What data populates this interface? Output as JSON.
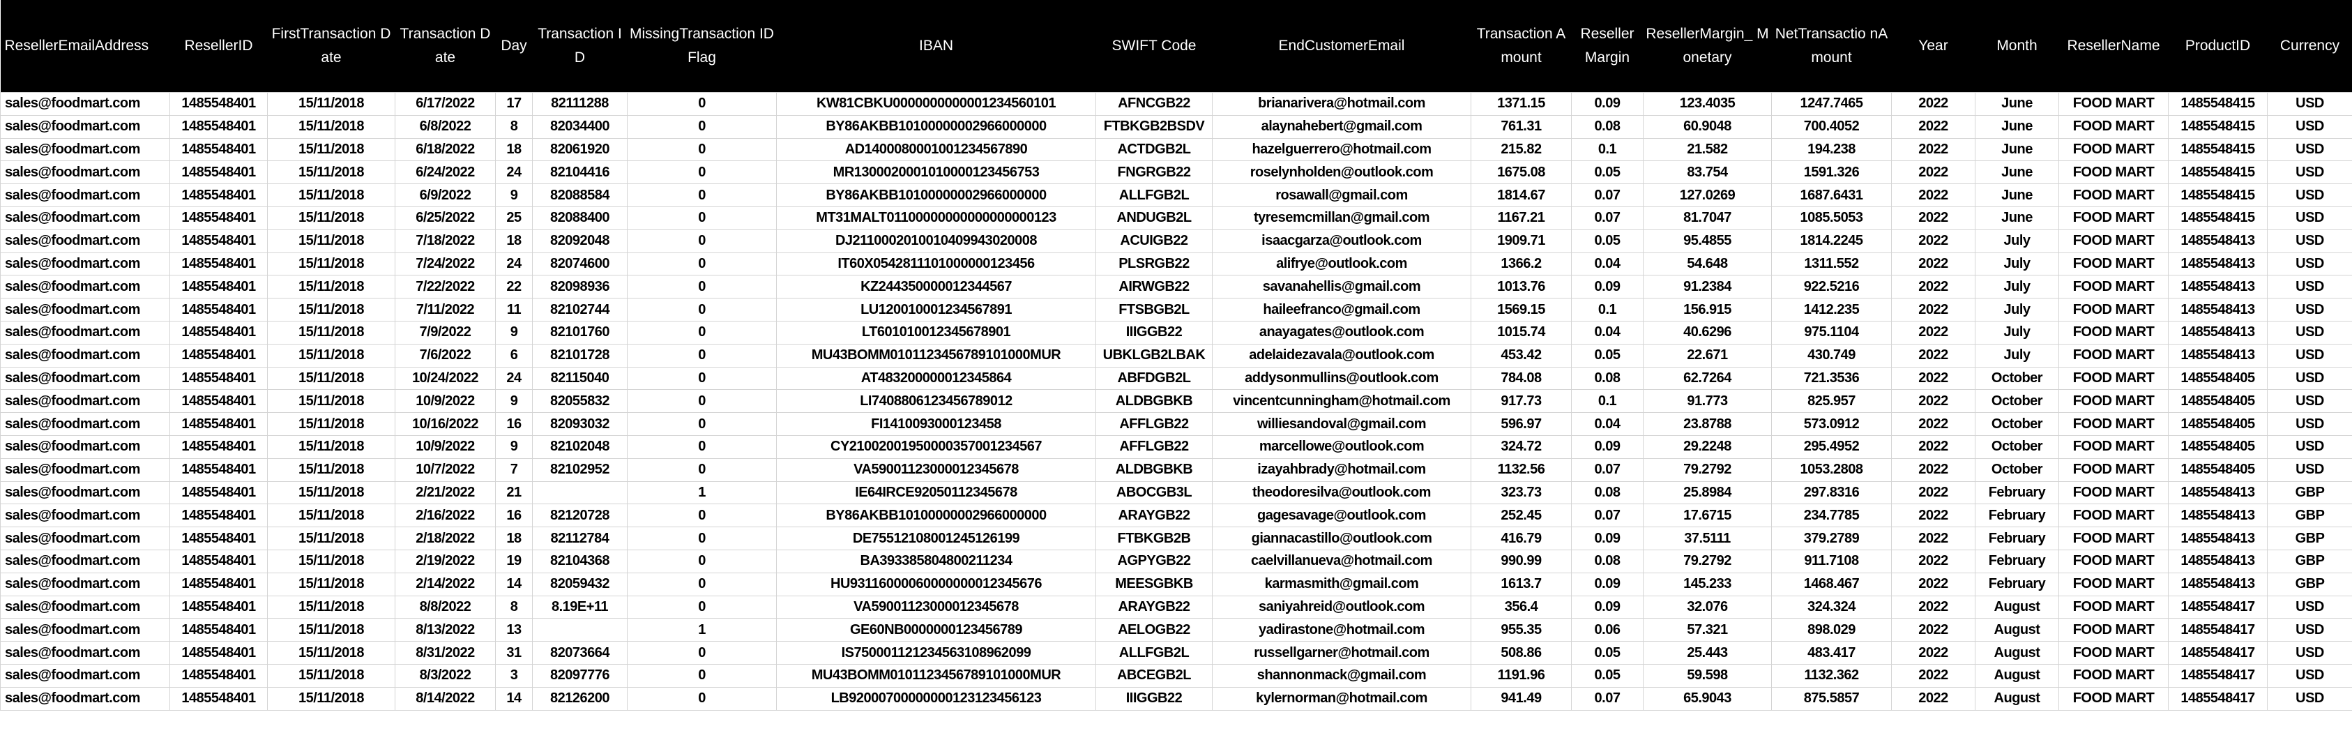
{
  "sheet": {
    "columns": [
      "ResellerEmailAddress",
      "ResellerID",
      "FirstTransaction Date",
      "Transaction Date",
      "Day",
      "Transaction ID",
      "MissingTransaction IDFlag",
      "IBAN",
      "SWIFT Code",
      "EndCustomerEmail",
      "Transaction Amount",
      "Reseller Margin",
      "ResellerMargin_ Monetary",
      "NetTransactio nAmount",
      "Year",
      "Month",
      "ResellerName",
      "ProductID",
      "Currency"
    ],
    "rows": [
      [
        "sales@foodmart.com",
        "1485548401",
        "15/11/2018",
        "6/17/2022",
        "17",
        "82111288",
        "0",
        "KW81CBKU0000000000001234560101",
        "AFNCGB22",
        "brianarivera@hotmail.com",
        "1371.15",
        "0.09",
        "123.4035",
        "1247.7465",
        "2022",
        "June",
        "FOOD MART",
        "1485548415",
        "USD"
      ],
      [
        "sales@foodmart.com",
        "1485548401",
        "15/11/2018",
        "6/8/2022",
        "8",
        "82034400",
        "0",
        "BY86AKBB10100000002966000000",
        "FTBKGB2BSDV",
        "alaynahebert@gmail.com",
        "761.31",
        "0.08",
        "60.9048",
        "700.4052",
        "2022",
        "June",
        "FOOD MART",
        "1485548415",
        "USD"
      ],
      [
        "sales@foodmart.com",
        "1485548401",
        "15/11/2018",
        "6/18/2022",
        "18",
        "82061920",
        "0",
        "AD1400080001001234567890",
        "ACTDGB2L",
        "hazelguerrero@hotmail.com",
        "215.82",
        "0.1",
        "21.582",
        "194.238",
        "2022",
        "June",
        "FOOD MART",
        "1485548415",
        "USD"
      ],
      [
        "sales@foodmart.com",
        "1485548401",
        "15/11/2018",
        "6/24/2022",
        "24",
        "82104416",
        "0",
        "MR1300020001010000123456753",
        "FNGRGB22",
        "roselynholden@outlook.com",
        "1675.08",
        "0.05",
        "83.754",
        "1591.326",
        "2022",
        "June",
        "FOOD MART",
        "1485548415",
        "USD"
      ],
      [
        "sales@foodmart.com",
        "1485548401",
        "15/11/2018",
        "6/9/2022",
        "9",
        "82088584",
        "0",
        "BY86AKBB10100000002966000000",
        "ALLFGB2L",
        "rosawall@gmail.com",
        "1814.67",
        "0.07",
        "127.0269",
        "1687.6431",
        "2022",
        "June",
        "FOOD MART",
        "1485548415",
        "USD"
      ],
      [
        "sales@foodmart.com",
        "1485548401",
        "15/11/2018",
        "6/25/2022",
        "25",
        "82088400",
        "0",
        "MT31MALT01100000000000000000123",
        "ANDUGB2L",
        "tyresemcmillan@gmail.com",
        "1167.21",
        "0.07",
        "81.7047",
        "1085.5053",
        "2022",
        "June",
        "FOOD MART",
        "1485548415",
        "USD"
      ],
      [
        "sales@foodmart.com",
        "1485548401",
        "15/11/2018",
        "7/18/2022",
        "18",
        "82092048",
        "0",
        "DJ2110002010010409943020008",
        "ACUIGB22",
        "isaacgarza@outlook.com",
        "1909.71",
        "0.05",
        "95.4855",
        "1814.2245",
        "2022",
        "July",
        "FOOD MART",
        "1485548413",
        "USD"
      ],
      [
        "sales@foodmart.com",
        "1485548401",
        "15/11/2018",
        "7/24/2022",
        "24",
        "82074600",
        "0",
        "IT60X0542811101000000123456",
        "PLSRGB22",
        "alifrye@outlook.com",
        "1366.2",
        "0.04",
        "54.648",
        "1311.552",
        "2022",
        "July",
        "FOOD MART",
        "1485548413",
        "USD"
      ],
      [
        "sales@foodmart.com",
        "1485548401",
        "15/11/2018",
        "7/22/2022",
        "22",
        "82098936",
        "0",
        "KZ244350000012344567",
        "AIRWGB22",
        "savanahellis@gmail.com",
        "1013.76",
        "0.09",
        "91.2384",
        "922.5216",
        "2022",
        "July",
        "FOOD MART",
        "1485548413",
        "USD"
      ],
      [
        "sales@foodmart.com",
        "1485548401",
        "15/11/2018",
        "7/11/2022",
        "11",
        "82102744",
        "0",
        "LU120010001234567891",
        "FTSBGB2L",
        "haileefranco@gmail.com",
        "1569.15",
        "0.1",
        "156.915",
        "1412.235",
        "2022",
        "July",
        "FOOD MART",
        "1485548413",
        "USD"
      ],
      [
        "sales@foodmart.com",
        "1485548401",
        "15/11/2018",
        "7/9/2022",
        "9",
        "82101760",
        "0",
        "LT601010012345678901",
        "IIIGGB22",
        "anayagates@outlook.com",
        "1015.74",
        "0.04",
        "40.6296",
        "975.1104",
        "2022",
        "July",
        "FOOD MART",
        "1485548413",
        "USD"
      ],
      [
        "sales@foodmart.com",
        "1485548401",
        "15/11/2018",
        "7/6/2022",
        "6",
        "82101728",
        "0",
        "MU43BOMM0101123456789101000MUR",
        "UBKLGB2LBAK",
        "adelaidezavala@outlook.com",
        "453.42",
        "0.05",
        "22.671",
        "430.749",
        "2022",
        "July",
        "FOOD MART",
        "1485548413",
        "USD"
      ],
      [
        "sales@foodmart.com",
        "1485548401",
        "15/11/2018",
        "10/24/2022",
        "24",
        "82115040",
        "0",
        "AT483200000012345864",
        "ABFDGB2L",
        "addysonmullins@outlook.com",
        "784.08",
        "0.08",
        "62.7264",
        "721.3536",
        "2022",
        "October",
        "FOOD MART",
        "1485548405",
        "USD"
      ],
      [
        "sales@foodmart.com",
        "1485548401",
        "15/11/2018",
        "10/9/2022",
        "9",
        "82055832",
        "0",
        "LI7408806123456789012",
        "ALDBGBKB",
        "vincentcunningham@hotmail.com",
        "917.73",
        "0.1",
        "91.773",
        "825.957",
        "2022",
        "October",
        "FOOD MART",
        "1485548405",
        "USD"
      ],
      [
        "sales@foodmart.com",
        "1485548401",
        "15/11/2018",
        "10/16/2022",
        "16",
        "82093032",
        "0",
        "FI1410093000123458",
        "AFFLGB22",
        "williesandoval@gmail.com",
        "596.97",
        "0.04",
        "23.8788",
        "573.0912",
        "2022",
        "October",
        "FOOD MART",
        "1485548405",
        "USD"
      ],
      [
        "sales@foodmart.com",
        "1485548401",
        "15/11/2018",
        "10/9/2022",
        "9",
        "82102048",
        "0",
        "CY21002001950000357001234567",
        "AFFLGB22",
        "marcellowe@outlook.com",
        "324.72",
        "0.09",
        "29.2248",
        "295.4952",
        "2022",
        "October",
        "FOOD MART",
        "1485548405",
        "USD"
      ],
      [
        "sales@foodmart.com",
        "1485548401",
        "15/11/2018",
        "10/7/2022",
        "7",
        "82102952",
        "0",
        "VA59001123000012345678",
        "ALDBGBKB",
        "izayahbrady@hotmail.com",
        "1132.56",
        "0.07",
        "79.2792",
        "1053.2808",
        "2022",
        "October",
        "FOOD MART",
        "1485548405",
        "USD"
      ],
      [
        "sales@foodmart.com",
        "1485548401",
        "15/11/2018",
        "2/21/2022",
        "21",
        "",
        "1",
        "IE64IRCE92050112345678",
        "ABOCGB3L",
        "theodoresilva@outlook.com",
        "323.73",
        "0.08",
        "25.8984",
        "297.8316",
        "2022",
        "February",
        "FOOD MART",
        "1485548413",
        "GBP"
      ],
      [
        "sales@foodmart.com",
        "1485548401",
        "15/11/2018",
        "2/16/2022",
        "16",
        "82120728",
        "0",
        "BY86AKBB10100000002966000000",
        "ARAYGB22",
        "gagesavage@outlook.com",
        "252.45",
        "0.07",
        "17.6715",
        "234.7785",
        "2022",
        "February",
        "FOOD MART",
        "1485548413",
        "GBP"
      ],
      [
        "sales@foodmart.com",
        "1485548401",
        "15/11/2018",
        "2/18/2022",
        "18",
        "82112784",
        "0",
        "DE75512108001245126199",
        "FTBKGB2B",
        "giannacastillo@outlook.com",
        "416.79",
        "0.09",
        "37.5111",
        "379.2789",
        "2022",
        "February",
        "FOOD MART",
        "1485548413",
        "GBP"
      ],
      [
        "sales@foodmart.com",
        "1485548401",
        "15/11/2018",
        "2/19/2022",
        "19",
        "82104368",
        "0",
        "BA393385804800211234",
        "AGPYGB22",
        "caelvillanueva@hotmail.com",
        "990.99",
        "0.08",
        "79.2792",
        "911.7108",
        "2022",
        "February",
        "FOOD MART",
        "1485548413",
        "GBP"
      ],
      [
        "sales@foodmart.com",
        "1485548401",
        "15/11/2018",
        "2/14/2022",
        "14",
        "82059432",
        "0",
        "HU93116000060000000012345676",
        "MEESGBKB",
        "karmasmith@gmail.com",
        "1613.7",
        "0.09",
        "145.233",
        "1468.467",
        "2022",
        "February",
        "FOOD MART",
        "1485548413",
        "GBP"
      ],
      [
        "sales@foodmart.com",
        "1485548401",
        "15/11/2018",
        "8/8/2022",
        "8",
        "8.19E+11",
        "0",
        "VA59001123000012345678",
        "ARAYGB22",
        "saniyahreid@outlook.com",
        "356.4",
        "0.09",
        "32.076",
        "324.324",
        "2022",
        "August",
        "FOOD MART",
        "1485548417",
        "USD"
      ],
      [
        "sales@foodmart.com",
        "1485548401",
        "15/11/2018",
        "8/13/2022",
        "13",
        "",
        "1",
        "GE60NB0000000123456789",
        "AELOGB22",
        "yadirastone@hotmail.com",
        "955.35",
        "0.06",
        "57.321",
        "898.029",
        "2022",
        "August",
        "FOOD MART",
        "1485548417",
        "USD"
      ],
      [
        "sales@foodmart.com",
        "1485548401",
        "15/11/2018",
        "8/31/2022",
        "31",
        "82073664",
        "0",
        "IS750001121234563108962099",
        "ALLFGB2L",
        "russellgarner@hotmail.com",
        "508.86",
        "0.05",
        "25.443",
        "483.417",
        "2022",
        "August",
        "FOOD MART",
        "1485548417",
        "USD"
      ],
      [
        "sales@foodmart.com",
        "1485548401",
        "15/11/2018",
        "8/3/2022",
        "3",
        "82097776",
        "0",
        "MU43BOMM0101123456789101000MUR",
        "ABCEGB2L",
        "shannonmack@gmail.com",
        "1191.96",
        "0.05",
        "59.598",
        "1132.362",
        "2022",
        "August",
        "FOOD MART",
        "1485548417",
        "USD"
      ],
      [
        "sales@foodmart.com",
        "1485548401",
        "15/11/2018",
        "8/14/2022",
        "14",
        "82126200",
        "0",
        "LB92000700000000123123456123",
        "IIIGGB22",
        "kylernorman@hotmail.com",
        "941.49",
        "0.07",
        "65.9043",
        "875.5857",
        "2022",
        "August",
        "FOOD MART",
        "1485548417",
        "USD"
      ]
    ]
  }
}
